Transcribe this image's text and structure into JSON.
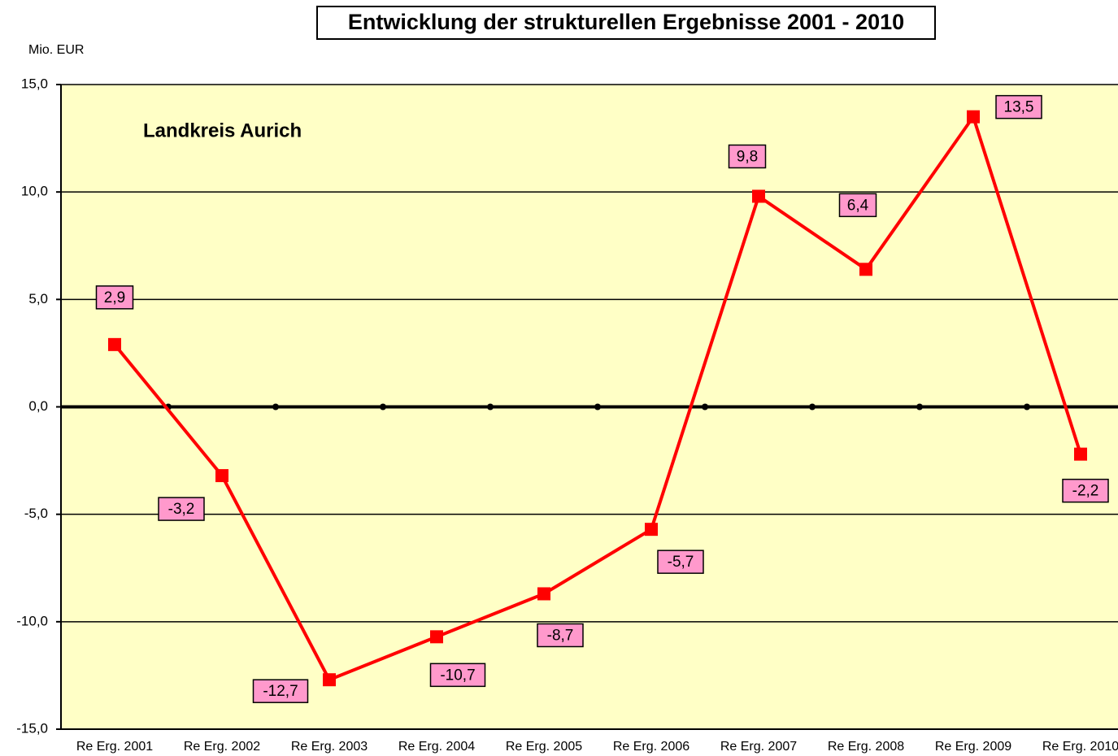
{
  "chart_data": {
    "type": "line",
    "title": "Entwicklung der strukturellen Ergebnisse 2001 - 2010",
    "y_label": "Mio. EUR",
    "annotation": "Landkreis Aurich",
    "categories": [
      "Re Erg. 2001",
      "Re Erg. 2002",
      "Re Erg. 2003",
      "Re Erg. 2004",
      "Re Erg. 2005",
      "Re Erg. 2006",
      "Re Erg. 2007",
      "Re Erg. 2008",
      "Re Erg. 2009",
      "Re Erg. 2010"
    ],
    "series": [
      {
        "name": "Landkreis Aurich",
        "color": "#ff0000",
        "values": [
          2.9,
          -3.2,
          -12.7,
          -10.7,
          -8.7,
          -5.7,
          9.8,
          6.4,
          13.5,
          -2.2
        ],
        "value_labels": [
          "2,9",
          "-3,2",
          "-12,7",
          "-10,7",
          "-8,7",
          "-5,7",
          "9,8",
          "6,4",
          "13,5",
          "-2,2"
        ]
      }
    ],
    "ylim": [
      -15,
      15
    ],
    "yticks": [
      {
        "value": -15,
        "label": "-15,0"
      },
      {
        "value": -10,
        "label": "-10,0"
      },
      {
        "value": -5,
        "label": "-5,0"
      },
      {
        "value": 0,
        "label": "0,0"
      },
      {
        "value": 5,
        "label": "5,0"
      },
      {
        "value": 10,
        "label": "10,0"
      },
      {
        "value": 15,
        "label": "15,0"
      }
    ],
    "grid": true
  }
}
